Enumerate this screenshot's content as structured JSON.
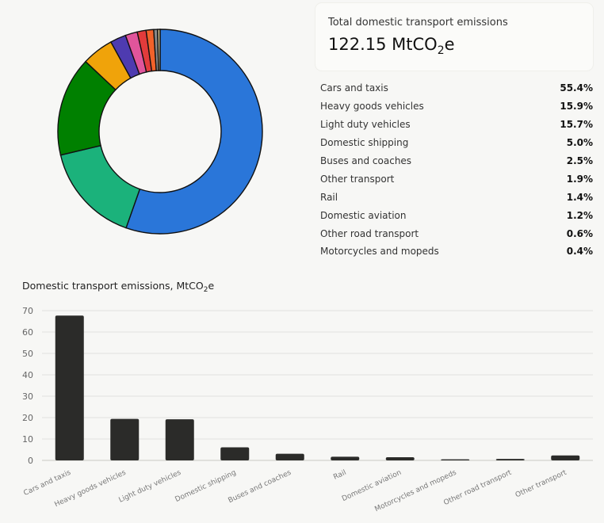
{
  "summary": {
    "title": "Total domestic transport emissions",
    "value": "122.15 MtCO",
    "value_sub": "2",
    "value_suffix": "e"
  },
  "bar_title": {
    "text": "Domestic transport emissions, MtCO",
    "sub": "2",
    "suffix": "e"
  },
  "chart_data": [
    {
      "type": "pie",
      "hole": true,
      "labels": [
        "Cars and taxis",
        "Heavy goods vehicles",
        "Light duty vehicles",
        "Domestic shipping",
        "Buses and coaches",
        "Other transport",
        "Rail",
        "Domestic aviation",
        "Other road transport",
        "Motorcycles and mopeds"
      ],
      "values": [
        55.4,
        15.9,
        15.7,
        5.0,
        2.5,
        1.9,
        1.4,
        1.2,
        0.6,
        0.4
      ],
      "display_values": [
        "55.4%",
        "15.9%",
        "15.7%",
        "5.0%",
        "2.5%",
        "1.9%",
        "1.4%",
        "1.2%",
        "0.6%",
        "0.4%"
      ],
      "colors": [
        "#2a76d9",
        "#1bb27b",
        "#008000",
        "#f0a30a",
        "#4e3bb0",
        "#e0559b",
        "#e23b3b",
        "#f2622a",
        "#888888",
        "#c9b98a"
      ]
    },
    {
      "type": "bar",
      "title": "Domestic transport emissions, MtCO2e",
      "categories": [
        "Cars and taxis",
        "Heavy goods vehicles",
        "Light duty vehicles",
        "Domestic shipping",
        "Buses and coaches",
        "Rail",
        "Domestic aviation",
        "Motorcycles and mopeds",
        "Other road transport",
        "Other transport"
      ],
      "values": [
        67.7,
        19.4,
        19.2,
        6.1,
        3.1,
        1.7,
        1.5,
        0.5,
        0.7,
        2.3
      ],
      "ylim": [
        0,
        70
      ],
      "yticks": [
        0,
        10,
        20,
        30,
        40,
        50,
        60,
        70
      ],
      "grid": true,
      "bar_color": "#2b2b29"
    }
  ]
}
